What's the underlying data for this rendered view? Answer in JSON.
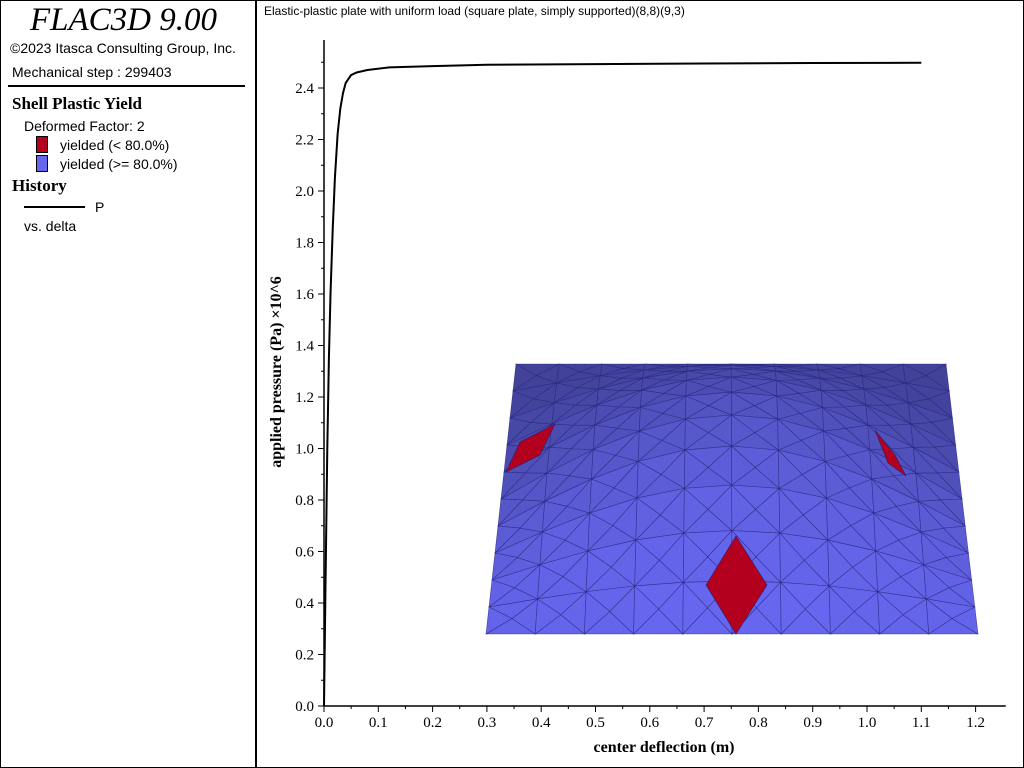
{
  "sidebar": {
    "app_title": "FLAC3D 9.00",
    "copyright": "©2023 Itasca Consulting Group, Inc.",
    "step": "Mechanical step : 299403",
    "shell": {
      "title": "Shell Plastic Yield",
      "deformed": "Deformed Factor: 2",
      "legend": [
        {
          "label": "yielded (< 80.0%)",
          "color": "#b3001e"
        },
        {
          "label": "yielded (>= 80.0%)",
          "color": "#6666ee"
        }
      ]
    },
    "history": {
      "title": "History",
      "series_label": "P",
      "vs_label": "vs. delta"
    }
  },
  "chart_data": {
    "type": "line",
    "title": "Elastic-plastic plate with uniform load (square plate, simply supported)(8,8)(9,3)",
    "xlabel": "center deflection (m)",
    "ylabel": "applied pressure (Pa) ×10^6",
    "xlim": [
      0,
      1.25
    ],
    "ylim": [
      0,
      2.5
    ],
    "x_ticks": [
      "0.0",
      "0.1",
      "0.2",
      "0.3",
      "0.4",
      "0.5",
      "0.6",
      "0.7",
      "0.8",
      "0.9",
      "1.0",
      "1.1",
      "1.2"
    ],
    "y_ticks": [
      "0.0",
      "0.2",
      "0.4",
      "0.6",
      "0.8",
      "1.0",
      "1.2",
      "1.4",
      "1.6",
      "1.8",
      "2.0",
      "2.2",
      "2.4"
    ],
    "grid": false,
    "series": [
      {
        "name": "P",
        "color": "#000000",
        "x": [
          0.0,
          0.003,
          0.006,
          0.009,
          0.012,
          0.016,
          0.02,
          0.025,
          0.03,
          0.035,
          0.04,
          0.05,
          0.06,
          0.08,
          0.12,
          0.2,
          0.3,
          0.5,
          0.7,
          0.9,
          1.1
        ],
        "y": [
          0.0,
          0.5,
          1.0,
          1.35,
          1.6,
          1.85,
          2.05,
          2.22,
          2.32,
          2.38,
          2.42,
          2.45,
          2.46,
          2.47,
          2.48,
          2.485,
          2.49,
          2.493,
          2.495,
          2.497,
          2.498
        ]
      }
    ],
    "inset": "deformed shell plate mesh"
  }
}
